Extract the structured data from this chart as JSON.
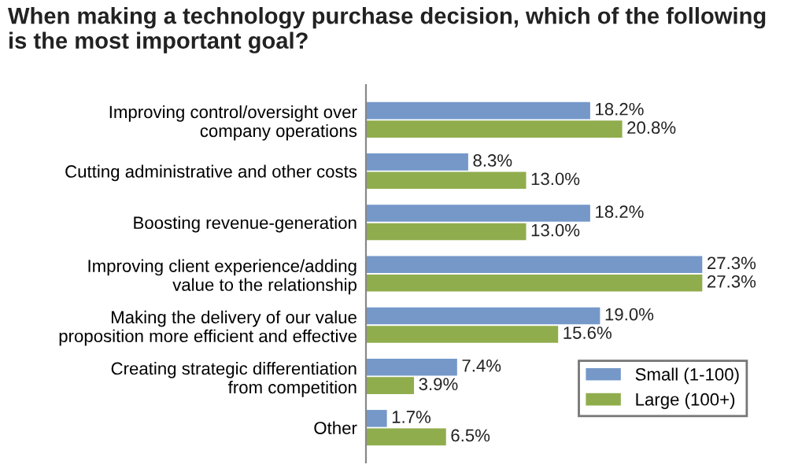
{
  "chart_data": {
    "type": "bar",
    "orientation": "horizontal",
    "title": "When making a technology purchase decision, which of the following is the most important goal?",
    "categories": [
      "Improving control/oversight over\ncompany operations",
      "Cutting administrative and other costs",
      "Boosting revenue-generation",
      "Improving client experience/adding\nvalue to the relationship",
      "Making the delivery of our value\nproposition more efficient and effective",
      "Creating strategic differentiation\nfrom competition",
      "Other"
    ],
    "series": [
      {
        "name": "Small (1-100)",
        "color": "#7598c9",
        "values": [
          18.2,
          8.3,
          18.2,
          27.3,
          19.0,
          7.4,
          1.7
        ],
        "value_labels": [
          "18.2%",
          "8.3%",
          "18.2%",
          "27.3%",
          "19.0%",
          "7.4%",
          "1.7%"
        ]
      },
      {
        "name": "Large (100+)",
        "color": "#90ad4d",
        "values": [
          20.8,
          13.0,
          13.0,
          27.3,
          15.6,
          3.9,
          6.5
        ],
        "value_labels": [
          "20.8%",
          "13.0%",
          "13.0%",
          "27.3%",
          "15.6%",
          "3.9%",
          "6.5%"
        ]
      }
    ],
    "legend": "lower right"
  }
}
